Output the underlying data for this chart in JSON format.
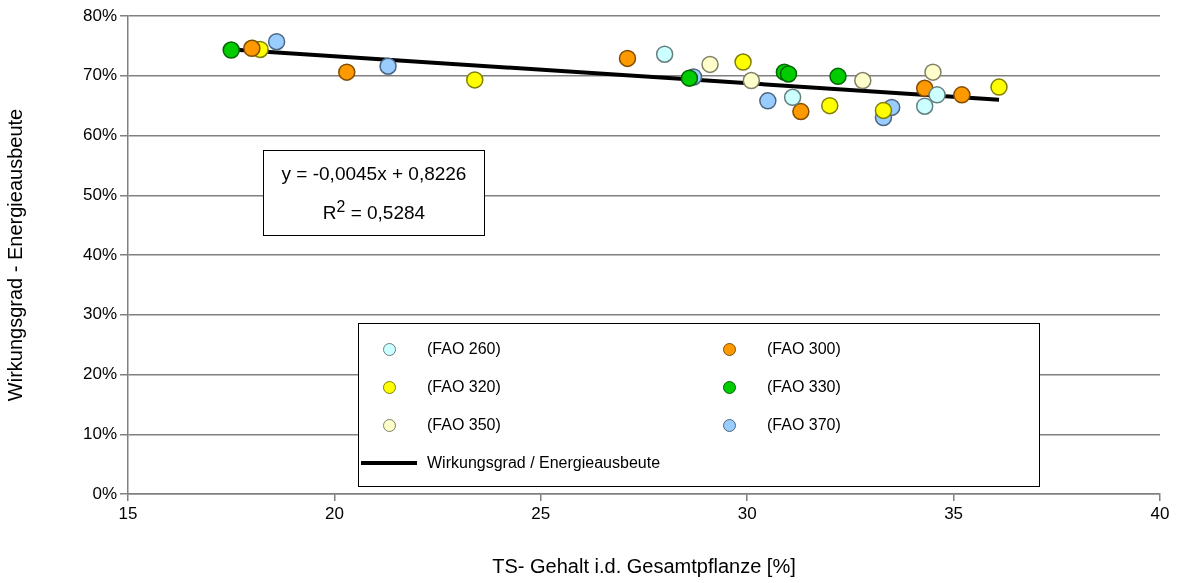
{
  "chart_data": {
    "type": "scatter",
    "xlabel": "TS- Gehalt i.d. Gesamtpflanze [%]",
    "ylabel": "Wirkungsgrad - Energieausbeute",
    "xlim": [
      15,
      40
    ],
    "xticks": [
      15,
      20,
      25,
      30,
      35,
      40
    ],
    "ylim": [
      0,
      80
    ],
    "yticks": [
      {
        "value": 0,
        "label": "0%"
      },
      {
        "value": 10,
        "label": "10%"
      },
      {
        "value": 20,
        "label": "20%"
      },
      {
        "value": 30,
        "label": "30%"
      },
      {
        "value": 40,
        "label": "40%"
      },
      {
        "value": 50,
        "label": "50%"
      },
      {
        "value": 60,
        "label": "60%"
      },
      {
        "value": 70,
        "label": "70%"
      },
      {
        "value": 80,
        "label": "80%"
      }
    ],
    "grid": "y",
    "legend": "bottom right",
    "marker": "circle",
    "annotations": [
      "y = -0,0045x + 0,8226",
      "R$^{2}$ = 0,5284"
    ],
    "series": [
      {
        "name": "(FAO 260)",
        "color": "#ccffff",
        "x": [
          28.0,
          31.1,
          34.6,
          34.3
        ],
        "values": [
          73.6,
          66.4,
          66.8,
          64.9
        ]
      },
      {
        "name": "(FAO 300)",
        "color": "#ff9900",
        "x": [
          18.0,
          20.3,
          27.1,
          31.3,
          34.3,
          35.2
        ],
        "values": [
          74.6,
          70.6,
          72.9,
          64.0,
          67.9,
          66.8
        ]
      },
      {
        "name": "(FAO 320)",
        "color": "#ffff00",
        "x": [
          18.2,
          23.4,
          29.9,
          32.0,
          33.3,
          36.1
        ],
        "values": [
          74.4,
          69.3,
          72.3,
          65.0,
          64.2,
          68.1
        ]
      },
      {
        "name": "(FAO 330)",
        "color": "#00cc00",
        "x": [
          17.5,
          28.6,
          30.9,
          31.0,
          32.2
        ],
        "values": [
          74.3,
          69.6,
          70.6,
          70.3,
          69.9
        ]
      },
      {
        "name": "(FAO 350)",
        "color": "#ffffcc",
        "x": [
          29.1,
          30.1,
          32.8,
          34.5
        ],
        "values": [
          71.9,
          69.2,
          69.2,
          70.6
        ]
      },
      {
        "name": "(FAO 370)",
        "color": "#99ccff",
        "x": [
          18.6,
          21.3,
          28.7,
          30.5,
          33.3,
          33.5
        ],
        "values": [
          75.7,
          71.6,
          69.8,
          65.8,
          63.0,
          64.7
        ]
      },
      {
        "name": "Wirkungsgrad / Energieausbeute",
        "type": "line",
        "color": "#000000",
        "marker": "none",
        "x": [
          17.5,
          36.1
        ],
        "values": [
          74.4,
          66.0
        ]
      }
    ]
  }
}
